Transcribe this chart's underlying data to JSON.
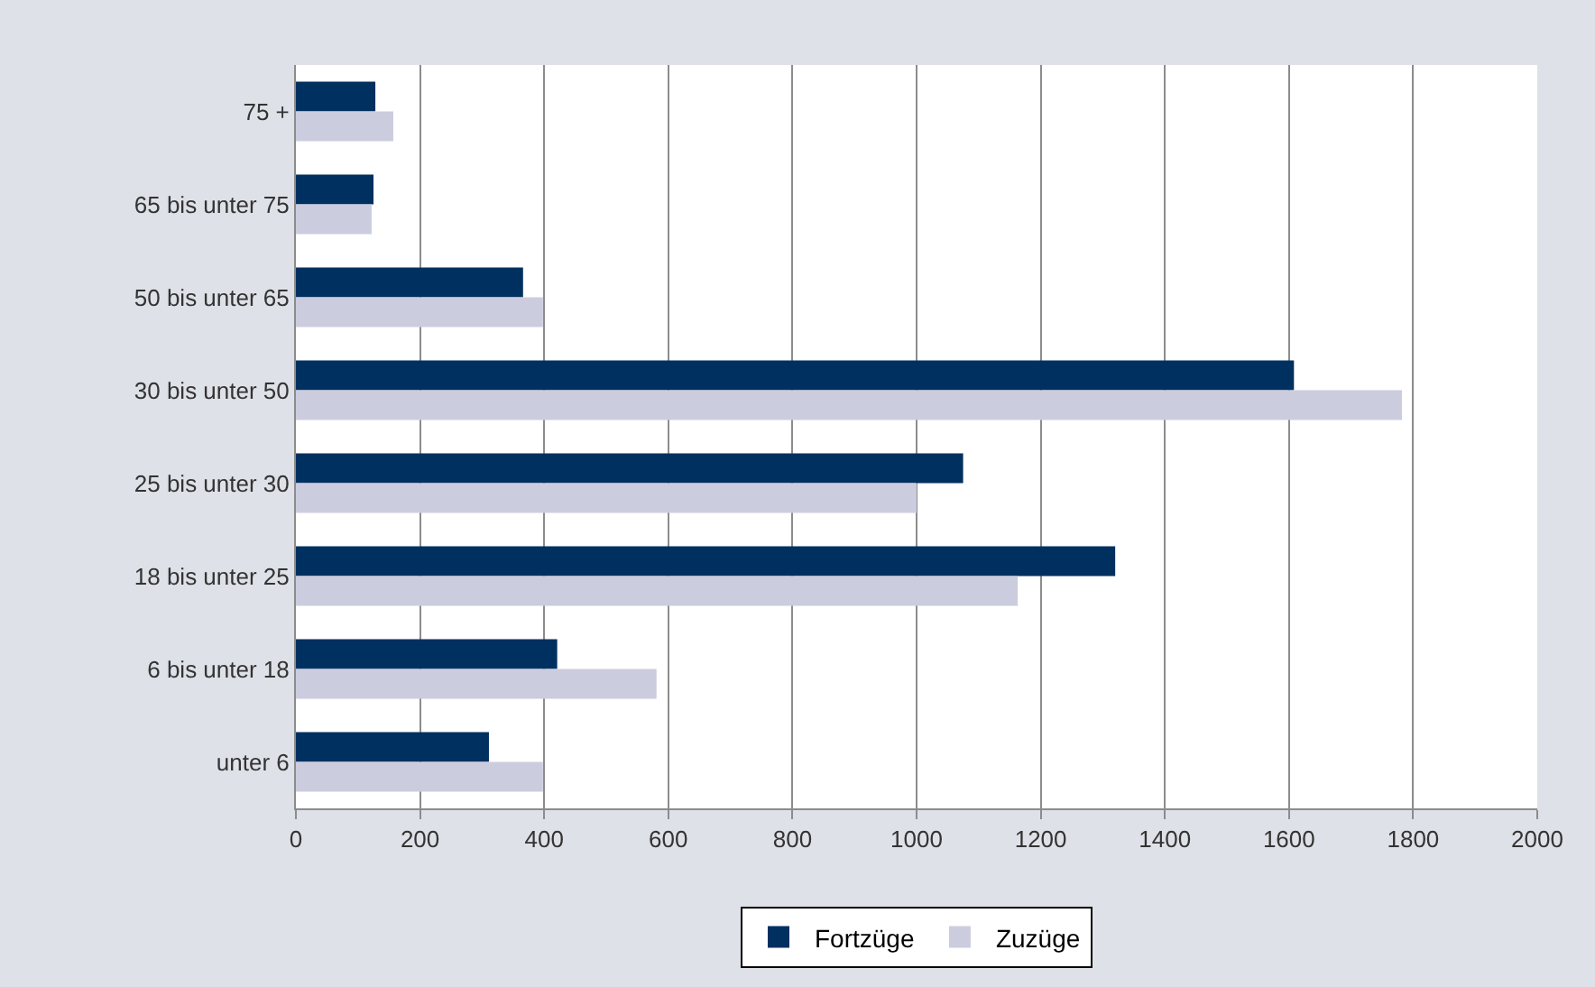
{
  "chart_data": {
    "type": "bar",
    "orientation": "horizontal",
    "categories": [
      "75 +",
      "65 bis unter 75",
      "50 bis unter 65",
      "30 bis unter 50",
      "25 bis unter 30",
      "18 bis unter 25",
      "6 bis unter 18",
      "unter 6"
    ],
    "series": [
      {
        "name": "Fortzüge",
        "color": "#00305f",
        "values": [
          128,
          125,
          366,
          1608,
          1075,
          1320,
          421,
          311
        ]
      },
      {
        "name": "Zuzüge",
        "color": "#ccccdf",
        "values": [
          157,
          122,
          398,
          1782,
          1000,
          1163,
          581,
          398
        ]
      }
    ],
    "xlim": [
      0,
      2000
    ],
    "xticks": [
      0,
      200,
      400,
      600,
      800,
      1000,
      1200,
      1400,
      1600,
      1800,
      2000
    ],
    "grid": "x",
    "legend": "bottom"
  }
}
